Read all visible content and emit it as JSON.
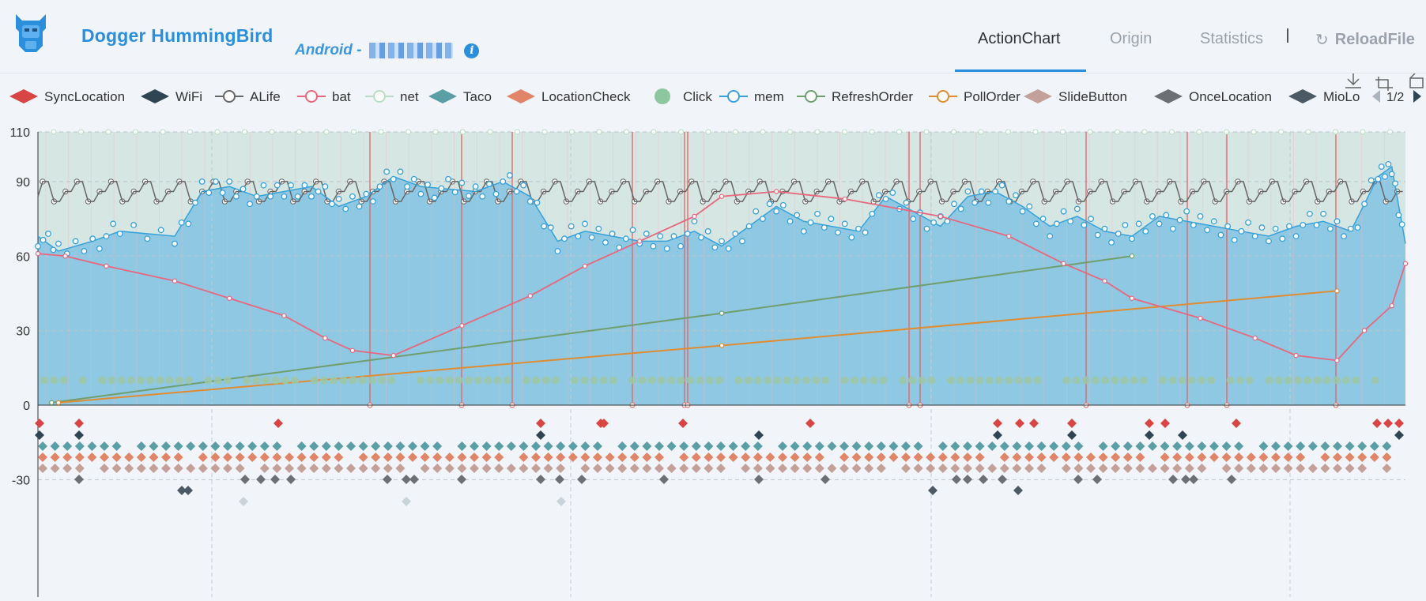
{
  "header": {
    "app_title": "Dogger HummingBird",
    "device_prefix": "Android -",
    "info_icon": "info-icon"
  },
  "nav": {
    "tabs": [
      {
        "label": "ActionChart",
        "active": true
      },
      {
        "label": "Origin",
        "active": false
      },
      {
        "label": "Statistics",
        "active": false
      }
    ],
    "reload_label": "ReloadFile",
    "reload_icon": "refresh-icon"
  },
  "toolbox": [
    "download-icon",
    "crop-icon",
    "restore-icon"
  ],
  "colors": {
    "accent": "#2b8fdb",
    "mem": "#37a2da",
    "bat": "#e8677f",
    "alife": "#666666",
    "refresh_order": "#6f9e6f",
    "poll_order": "#e08c32",
    "click": "#9fc7a6"
  },
  "chart_data": {
    "type": "line",
    "legend_page": "1/2",
    "legend_placement": "top",
    "legend": [
      {
        "name": "SyncLocation",
        "symbol": "diamond",
        "color": "#d94545"
      },
      {
        "name": "WiFi",
        "symbol": "diamond",
        "color": "#2f4554"
      },
      {
        "name": "ALife",
        "symbol": "emptyCircle",
        "color": "#666666"
      },
      {
        "name": "bat",
        "symbol": "emptyCircle",
        "color": "#e8677f"
      },
      {
        "name": "net",
        "symbol": "emptyCircle",
        "color": "#b8ddc4"
      },
      {
        "name": "Taco",
        "symbol": "diamond",
        "color": "#5a9fa6"
      },
      {
        "name": "LocationCheck",
        "symbol": "diamond",
        "color": "#e08567"
      },
      {
        "name": "Click",
        "symbol": "circle",
        "color": "#8dc7a0"
      },
      {
        "name": "mem",
        "symbol": "emptyCircle",
        "color": "#37a2da"
      },
      {
        "name": "RefreshOrder",
        "symbol": "emptyCircle",
        "color": "#6f9e6f"
      },
      {
        "name": "PollOrder",
        "symbol": "emptyCircle",
        "color": "#e08c32"
      },
      {
        "name": "SlideButton",
        "symbol": "diamond",
        "color": "#c4a09a"
      },
      {
        "name": "OnceLocation",
        "symbol": "diamond",
        "color": "#6c6f73"
      },
      {
        "name": "MioLo",
        "symbol": "diamond",
        "color": "#4c5a66"
      }
    ],
    "ylim": [
      -35,
      110
    ],
    "yticks": [
      110,
      90,
      60,
      30,
      0,
      -30
    ],
    "grid": true,
    "series": [
      {
        "name": "bat",
        "x": [
          0,
          4,
          10,
          20,
          28,
          36,
          42,
          46,
          52,
          62,
          72,
          80,
          88,
          96,
          100,
          108,
          118,
          132,
          142,
          150,
          156,
          160,
          170,
          178,
          184,
          190,
          194,
          198,
          200
        ],
        "y": [
          61,
          60,
          56,
          50,
          43,
          36,
          27,
          22,
          20,
          32,
          44,
          56,
          66,
          76,
          84,
          86,
          83,
          76,
          68,
          57,
          50,
          43,
          35,
          27,
          20,
          18,
          30,
          40,
          57
        ]
      },
      {
        "name": "RefreshOrder",
        "x": [
          2,
          100,
          160
        ],
        "y": [
          1,
          37,
          60
        ]
      },
      {
        "name": "PollOrder",
        "x": [
          3,
          100,
          190
        ],
        "y": [
          1,
          24,
          46
        ]
      },
      {
        "name": "mem",
        "x": [
          0,
          3,
          8,
          12,
          20,
          24,
          28,
          32,
          36,
          40,
          44,
          48,
          52,
          56,
          60,
          64,
          68,
          72,
          76,
          80,
          84,
          88,
          92,
          96,
          100,
          104,
          108,
          112,
          116,
          120,
          124,
          128,
          132,
          136,
          140,
          144,
          148,
          152,
          156,
          160,
          164,
          168,
          172,
          176,
          180,
          184,
          188,
          192,
          196,
          198,
          200
        ],
        "y": [
          68,
          62,
          66,
          70,
          68,
          86,
          88,
          84,
          86,
          88,
          80,
          84,
          92,
          88,
          87,
          86,
          90,
          84,
          66,
          70,
          68,
          66,
          66,
          70,
          64,
          72,
          80,
          74,
          72,
          70,
          84,
          78,
          72,
          84,
          86,
          80,
          72,
          76,
          70,
          68,
          76,
          74,
          72,
          70,
          68,
          72,
          74,
          70,
          92,
          96,
          65
        ]
      },
      {
        "name": "ALife",
        "x": [
          0,
          200
        ],
        "y": [
          84,
          84
        ]
      },
      {
        "name": "Click",
        "x": [
          0,
          200
        ],
        "y": [
          10,
          10
        ]
      }
    ],
    "axis_min_x": 0,
    "axis_max_x": 200
  }
}
